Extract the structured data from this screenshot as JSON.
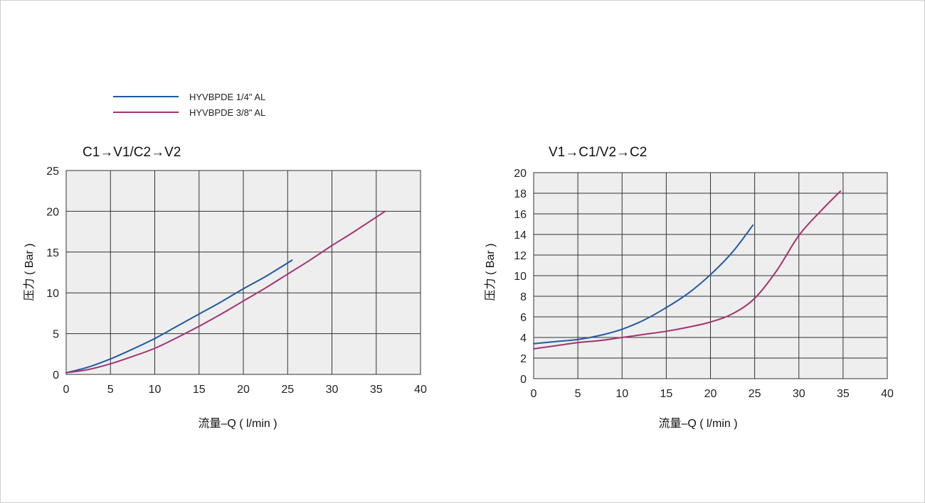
{
  "legend": [
    {
      "label": "HYVBPDE 1/4\" AL",
      "color": "#1f5aa0"
    },
    {
      "label": "HYVBPDE 3/8\" AL",
      "color": "#a3336f"
    }
  ],
  "colors": {
    "plot_bg": "#eeeeee",
    "grid": "#333333",
    "text": "#222222"
  },
  "chart_data": [
    {
      "type": "line",
      "title": "C1→V1/C2→V2",
      "xlabel": "流量–Q ( l/min )",
      "ylabel": "压力 ( Bar )",
      "xlim": [
        0,
        40
      ],
      "ylim": [
        0,
        25
      ],
      "xticks": [
        0,
        5,
        10,
        15,
        20,
        25,
        30,
        35,
        40
      ],
      "yticks": [
        0,
        5,
        10,
        15,
        20,
        25
      ],
      "grid": true,
      "legend_position": "top-left",
      "series": [
        {
          "name": "HYVBPDE 1/4\" AL",
          "color": "#1f5aa0",
          "x": [
            0,
            2.5,
            5,
            7.5,
            10,
            12.5,
            15,
            17.5,
            20,
            22.5,
            25.5
          ],
          "y": [
            0.2,
            0.9,
            1.9,
            3.1,
            4.4,
            5.9,
            7.4,
            8.9,
            10.5,
            12.0,
            14.0
          ]
        },
        {
          "name": "HYVBPDE 3/8\" AL",
          "color": "#a3336f",
          "x": [
            0,
            2.5,
            5,
            7.5,
            10,
            12.5,
            15,
            17.5,
            20,
            22.5,
            25,
            27.5,
            30,
            32.5,
            36
          ],
          "y": [
            0.2,
            0.6,
            1.3,
            2.2,
            3.2,
            4.5,
            5.9,
            7.4,
            9.0,
            10.6,
            12.3,
            14.0,
            15.8,
            17.5,
            20.0
          ]
        }
      ]
    },
    {
      "type": "line",
      "title": "V1→C1/V2→C2",
      "xlabel": "流量–Q ( l/min )",
      "ylabel": "压力 ( Bar )",
      "xlim": [
        0,
        40
      ],
      "ylim": [
        0,
        20
      ],
      "xticks": [
        0,
        5,
        10,
        15,
        20,
        25,
        30,
        35,
        40
      ],
      "yticks": [
        0,
        2,
        4,
        6,
        8,
        10,
        12,
        14,
        16,
        18,
        20
      ],
      "grid": true,
      "series": [
        {
          "name": "HYVBPDE 1/4\" AL",
          "color": "#1f5aa0",
          "x": [
            0,
            2.5,
            5,
            7.5,
            10,
            12.5,
            15,
            17.5,
            20,
            22.5,
            24.8
          ],
          "y": [
            3.4,
            3.6,
            3.8,
            4.2,
            4.8,
            5.7,
            6.9,
            8.3,
            10.1,
            12.3,
            14.9
          ]
        },
        {
          "name": "HYVBPDE 3/8\" AL",
          "color": "#a3336f",
          "x": [
            0,
            2.5,
            5,
            7.5,
            10,
            12.5,
            15,
            17.5,
            20,
            22.5,
            25,
            27.5,
            30,
            32.5,
            34.7
          ],
          "y": [
            2.9,
            3.2,
            3.5,
            3.7,
            4.0,
            4.3,
            4.6,
            5.0,
            5.5,
            6.3,
            7.8,
            10.5,
            13.9,
            16.3,
            18.2
          ]
        }
      ]
    }
  ]
}
